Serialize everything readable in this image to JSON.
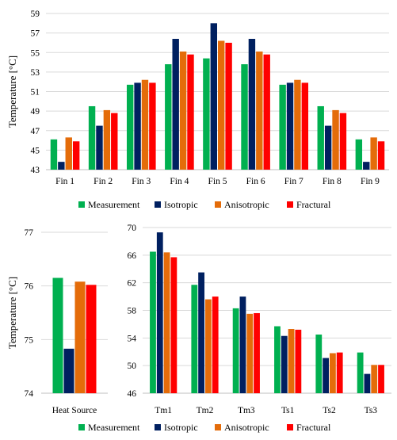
{
  "series_names": [
    "Measurement",
    "Isotropic",
    "Anisotropic",
    "Fractural"
  ],
  "colors": {
    "Measurement": "#00b050",
    "Isotropic": "#002060",
    "Anisotropic": "#e46c0a",
    "Fractural": "#ff0000"
  },
  "chart_data": [
    {
      "type": "bar",
      "ylabel": "Temperature [°C]",
      "ylim": [
        43,
        59
      ],
      "yticks": [
        43,
        45,
        47,
        49,
        51,
        53,
        55,
        57,
        59
      ],
      "categories": [
        "Fin 1",
        "Fin 2",
        "Fin 3",
        "Fin 4",
        "Fin 5",
        "Fin 6",
        "Fin 7",
        "Fin 8",
        "Fin 9"
      ],
      "series": [
        {
          "name": "Measurement",
          "values": [
            46.1,
            49.5,
            51.7,
            53.8,
            54.4,
            53.8,
            51.7,
            49.5,
            46.1
          ]
        },
        {
          "name": "Isotropic",
          "values": [
            43.8,
            47.5,
            51.9,
            56.4,
            58.0,
            56.4,
            51.9,
            47.5,
            43.8
          ]
        },
        {
          "name": "Anisotropic",
          "values": [
            46.3,
            49.1,
            52.2,
            55.1,
            56.2,
            55.1,
            52.2,
            49.1,
            46.3
          ]
        },
        {
          "name": "Fractural",
          "values": [
            45.9,
            48.8,
            51.9,
            54.8,
            56.0,
            54.8,
            51.9,
            48.8,
            45.9
          ]
        }
      ],
      "legend": "bottom",
      "grid": true
    },
    {
      "type": "bar",
      "ylabel": "Temperature [°C]",
      "ylim": [
        74,
        77
      ],
      "yticks": [
        74,
        75,
        76,
        77
      ],
      "categories": [
        "Heat Source"
      ],
      "series": [
        {
          "name": "Measurement",
          "values": [
            76.15
          ]
        },
        {
          "name": "Isotropic",
          "values": [
            74.83
          ]
        },
        {
          "name": "Anisotropic",
          "values": [
            76.08
          ]
        },
        {
          "name": "Fractural",
          "values": [
            76.02
          ]
        }
      ],
      "grid": true
    },
    {
      "type": "bar",
      "ylim": [
        46,
        70
      ],
      "yticks": [
        46,
        50,
        54,
        58,
        62,
        66,
        70
      ],
      "categories": [
        "Tm1",
        "Tm2",
        "Tm3",
        "Ts1",
        "Ts2",
        "Ts3"
      ],
      "series": [
        {
          "name": "Measurement",
          "values": [
            66.5,
            61.7,
            58.3,
            55.7,
            54.5,
            51.9
          ]
        },
        {
          "name": "Isotropic",
          "values": [
            69.3,
            63.5,
            60.0,
            54.3,
            51.1,
            48.8
          ]
        },
        {
          "name": "Anisotropic",
          "values": [
            66.4,
            59.6,
            57.5,
            55.3,
            51.8,
            50.1
          ]
        },
        {
          "name": "Fractural",
          "values": [
            65.7,
            60.0,
            57.6,
            55.2,
            51.9,
            50.1
          ]
        }
      ],
      "legend": "bottom",
      "grid": true
    }
  ]
}
